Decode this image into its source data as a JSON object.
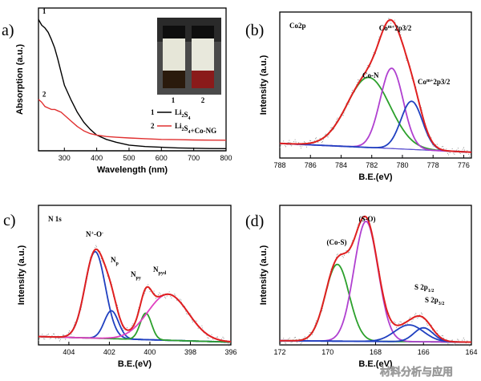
{
  "watermark": "材料分析与应用",
  "chart_data": [
    {
      "id": "a",
      "panel": "a)",
      "type": "line",
      "xlabel": "Wavelength (nm)",
      "ylabel": "Absorption (a.u.)",
      "xlim": [
        220,
        800
      ],
      "ylim": [
        0,
        1
      ],
      "xticks": [
        "300",
        "400",
        "500",
        "600",
        "700",
        "800"
      ],
      "xtick_values": [
        300,
        400,
        500,
        600,
        700,
        800
      ],
      "colors": {
        "line1": "#000000",
        "line2": "#e03030"
      },
      "curve_labels": [
        "1",
        "2"
      ],
      "inset": {
        "vial_labels": [
          "1",
          "2"
        ]
      },
      "legend": [
        {
          "num": "1",
          "name": "Li",
          "sub1": "2",
          "name2": "S",
          "sub2": "4",
          "extra": ""
        },
        {
          "num": "2",
          "name": "Li",
          "sub1": "2",
          "name2": "S",
          "sub2": "4",
          "extra": "+Co-NG"
        }
      ],
      "series": [
        {
          "name": "Li2S4",
          "color": "#000000",
          "x": [
            220,
            230,
            240,
            250,
            260,
            270,
            280,
            290,
            300,
            320,
            340,
            360,
            380,
            400,
            430,
            460,
            500,
            550,
            600,
            650,
            700,
            750,
            800
          ],
          "y": [
            0.92,
            0.88,
            0.86,
            0.83,
            0.78,
            0.72,
            0.64,
            0.55,
            0.46,
            0.36,
            0.27,
            0.2,
            0.15,
            0.11,
            0.08,
            0.06,
            0.04,
            0.03,
            0.025,
            0.02,
            0.018,
            0.016,
            0.015
          ]
        },
        {
          "name": "Li2S4+Co-NG",
          "color": "#e03030",
          "x": [
            220,
            230,
            240,
            250,
            260,
            270,
            280,
            290,
            300,
            320,
            340,
            360,
            380,
            400,
            430,
            460,
            500,
            550,
            600,
            650,
            700,
            750,
            800
          ],
          "y": [
            0.36,
            0.34,
            0.31,
            0.3,
            0.29,
            0.29,
            0.28,
            0.27,
            0.25,
            0.21,
            0.17,
            0.14,
            0.12,
            0.11,
            0.1,
            0.095,
            0.09,
            0.085,
            0.08,
            0.078,
            0.076,
            0.075,
            0.074
          ]
        },
        {
          "name": "baseline",
          "color": "#000000",
          "x": [
            220,
            800
          ],
          "y": [
            0.0,
            0.0
          ]
        }
      ]
    },
    {
      "id": "b",
      "panel": "(b)",
      "type": "line",
      "title": "Co2p",
      "xlabel": "B.E.(eV)",
      "ylabel": "Intensity (a.u.)",
      "xlim": [
        788,
        775.5
      ],
      "ylim": [
        0,
        1
      ],
      "xticks": [
        "788",
        "786",
        "784",
        "782",
        "780",
        "778",
        "776"
      ],
      "xtick_values": [
        788,
        786,
        784,
        782,
        780,
        778,
        776
      ],
      "annotations": [
        {
          "text": "Co-N",
          "sup": "",
          "rest": ""
        },
        {
          "text": "Co",
          "sup": "m+",
          "rest": "2p3/2"
        },
        {
          "text": "Co",
          "sup": "m+",
          "rest": "2p3/2"
        }
      ],
      "peaks": [
        {
          "name": "Co-N",
          "color": "#2ca02c",
          "center": 782.2,
          "amp": 0.48,
          "sigma": 1.4
        },
        {
          "name": "Com+2p3/2 main",
          "color": "#b040d0",
          "center": 780.7,
          "amp": 0.55,
          "sigma": 0.75
        },
        {
          "name": "Com+2p3/2 sat",
          "color": "#2040c0",
          "center": 779.4,
          "amp": 0.33,
          "sigma": 0.7
        },
        {
          "name": "envelope",
          "color": "#e02020"
        },
        {
          "name": "background",
          "color": "#5a4fcf"
        }
      ],
      "background": [
        0.1,
        0.04
      ]
    },
    {
      "id": "c",
      "panel": "c)",
      "type": "line",
      "title": "N 1s",
      "xlabel": "B.E.(eV)",
      "ylabel": "Intensity (a.u.)",
      "xlim": [
        405.5,
        396
      ],
      "ylim": [
        0,
        1
      ],
      "xticks": [
        "404",
        "402",
        "400",
        "398",
        "396"
      ],
      "xtick_values": [
        404,
        402,
        400,
        398,
        396
      ],
      "annotations": [
        {
          "text": "N",
          "sup": "+",
          "rest": "-O",
          "sup2": "-"
        },
        {
          "text": "N",
          "sub": "p",
          "rest": ""
        },
        {
          "text": "N",
          "sub": "py",
          "rest": ""
        },
        {
          "text": "N",
          "sub": "pyd",
          "rest": ""
        }
      ],
      "peaks": [
        {
          "name": "N+-O-",
          "color": "#2040c0",
          "center": 402.7,
          "amp": 0.62,
          "sigma": 0.5
        },
        {
          "name": "Np",
          "color": "#2040c0",
          "center": 401.9,
          "amp": 0.2,
          "sigma": 0.35
        },
        {
          "name": "Npy",
          "color": "#2ca02c",
          "center": 400.2,
          "amp": 0.19,
          "sigma": 0.28
        },
        {
          "name": "Npyd",
          "color": "#e040c0",
          "center": 399.1,
          "amp": 0.33,
          "sigma": 1.0
        },
        {
          "name": "envelope",
          "color": "#e02020"
        },
        {
          "name": "background",
          "color": "#5a4fcf"
        }
      ],
      "background": [
        0.06,
        0.02
      ]
    },
    {
      "id": "d",
      "panel": "(d)",
      "type": "line",
      "xlabel": "B.E.(eV)",
      "ylabel": "Intensity (a.u.)",
      "xlim": [
        172,
        164
      ],
      "ylim": [
        0,
        1
      ],
      "xticks": [
        "172",
        "170",
        "168",
        "166",
        "164"
      ],
      "xtick_values": [
        172,
        170,
        168,
        166,
        164
      ],
      "annotations": [
        {
          "text": "(Co-S)",
          "sub": "",
          "rest": ""
        },
        {
          "text": "(S-O)",
          "sub": "",
          "rest": ""
        },
        {
          "text": "S 2p",
          "sub": "1/2",
          "rest": ""
        },
        {
          "text": "S 2p",
          "sub": "3/2",
          "rest": ""
        }
      ],
      "peaks": [
        {
          "name": "(Co-S)",
          "color": "#2ca02c",
          "center": 169.6,
          "amp": 0.55,
          "sigma": 0.5
        },
        {
          "name": "(S-O)",
          "color": "#b040d0",
          "center": 168.4,
          "amp": 0.86,
          "sigma": 0.5
        },
        {
          "name": "S 2p1/2",
          "color": "#2040c0",
          "center": 166.6,
          "amp": 0.12,
          "sigma": 0.6
        },
        {
          "name": "S 2p3/2",
          "color": "#2040c0",
          "center": 166.0,
          "amp": 0.1,
          "sigma": 0.4
        },
        {
          "name": "envelope",
          "color": "#e02020"
        },
        {
          "name": "background",
          "color": "#5a4fcf"
        }
      ],
      "background": [
        0.03,
        0.02
      ]
    }
  ]
}
